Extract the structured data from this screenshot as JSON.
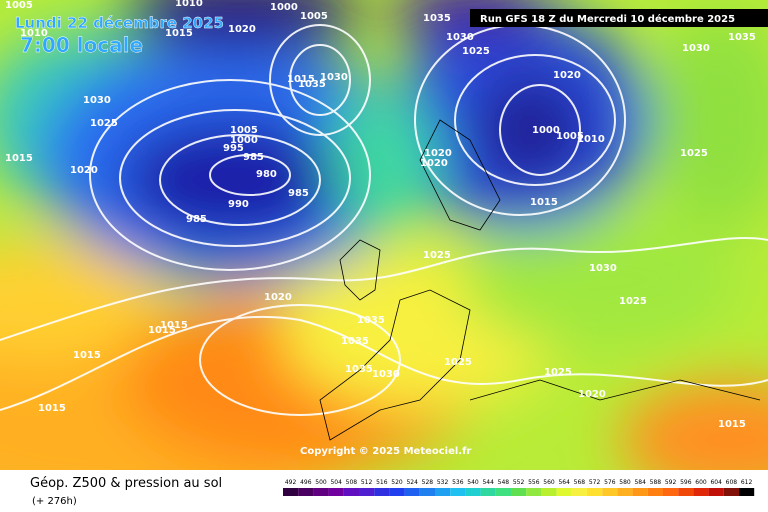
{
  "header": {
    "date": "Lundi 22 décembre 2025",
    "time": "7:00 locale",
    "run": "Run GFS 18 Z du Mercredi 10 décembre 2025"
  },
  "copyright": "Copyright © 2025 Meteociel.fr",
  "footer": {
    "title": "Géop. Z500 & pression au sol",
    "lead": "(+ 276h)"
  },
  "scale": [
    492,
    496,
    500,
    504,
    508,
    512,
    516,
    520,
    524,
    528,
    532,
    536,
    540,
    544,
    548,
    552,
    556,
    560,
    564,
    568,
    572,
    576,
    580,
    584,
    588,
    592,
    596,
    600,
    604,
    608,
    612
  ],
  "isobar_labels": [
    1005,
    1010,
    1000,
    1005,
    1020,
    1015,
    1010,
    1035,
    1030,
    1025,
    1030,
    1035,
    1020,
    1015,
    1035,
    1030,
    1030,
    1025,
    1015,
    1020,
    1005,
    1000,
    995,
    985,
    980,
    985,
    990,
    985,
    1000,
    1005,
    1010,
    1020,
    1020,
    1025,
    1015,
    1025,
    1030,
    1020,
    1025,
    1015,
    1015,
    1035,
    1035,
    1015,
    1035,
    1030,
    1025,
    1025,
    1020,
    1015,
    1015
  ]
}
